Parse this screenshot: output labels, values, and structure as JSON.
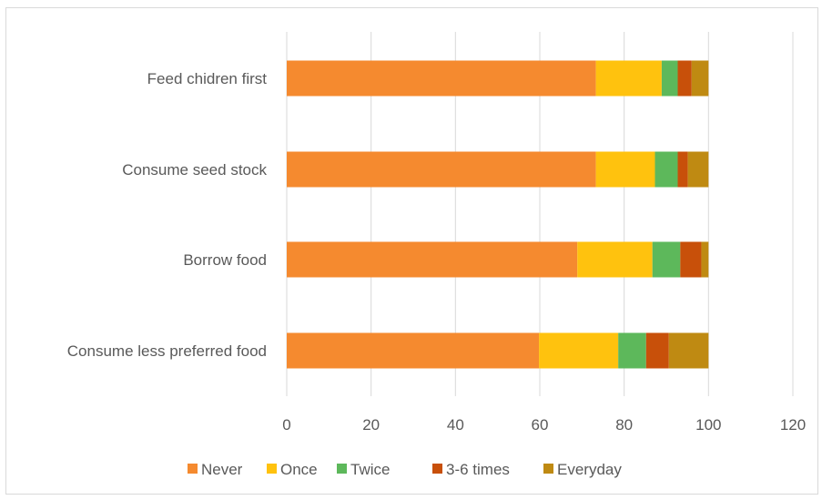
{
  "chart_data": {
    "type": "bar",
    "orientation": "horizontal",
    "stacked": true,
    "categories": [
      "Feed chidren first",
      "Consume seed stock",
      "Borrow food",
      "Consume less preferred food"
    ],
    "series": [
      {
        "name": "Never",
        "color": "#F58A2F",
        "values": [
          73.3,
          73.3,
          68.9,
          59.8
        ]
      },
      {
        "name": "Once",
        "color": "#FFC20E",
        "values": [
          15.6,
          14.0,
          17.8,
          18.8
        ]
      },
      {
        "name": "Twice",
        "color": "#5DB85B",
        "values": [
          3.8,
          5.4,
          6.6,
          6.6
        ]
      },
      {
        "name": "3-6 times",
        "color": "#C8500A",
        "values": [
          3.3,
          2.4,
          5.0,
          5.4
        ]
      },
      {
        "name": "Everyday",
        "color": "#BF8A12",
        "values": [
          4.0,
          4.9,
          1.7,
          9.4
        ]
      }
    ],
    "xlim": [
      0,
      120
    ],
    "x_ticks": [
      "0",
      "20",
      "40",
      "60",
      "80",
      "100",
      "120"
    ],
    "grid": true,
    "legend_position": "bottom"
  }
}
